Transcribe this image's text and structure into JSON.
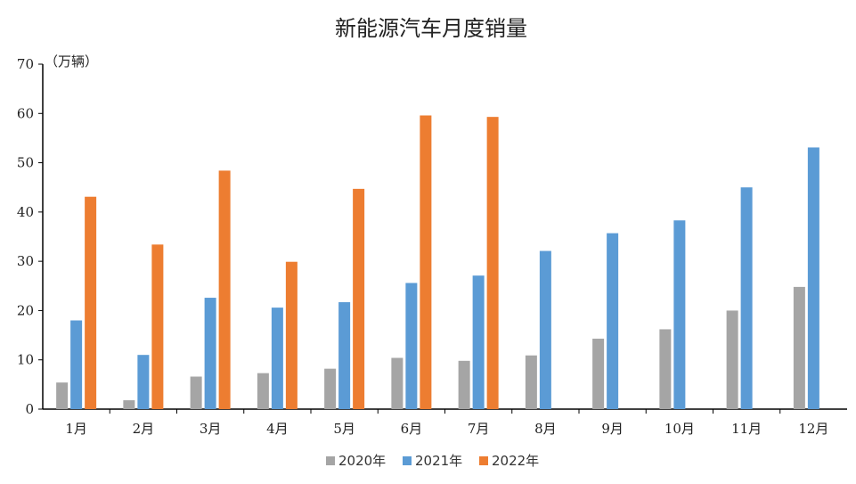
{
  "chart_data": {
    "type": "bar",
    "title": "新能源汽车月度销量",
    "ylabel": "（万辆）",
    "xlabel": "",
    "ylim": [
      0,
      70
    ],
    "yticks": [
      0,
      10,
      20,
      30,
      40,
      50,
      60,
      70
    ],
    "categories": [
      "1月",
      "2月",
      "3月",
      "4月",
      "5月",
      "6月",
      "7月",
      "8月",
      "9月",
      "10月",
      "11月",
      "12月"
    ],
    "series": [
      {
        "name": "2020年",
        "color": "#a5a5a5",
        "values": [
          5.4,
          1.8,
          6.6,
          7.3,
          8.2,
          10.4,
          9.8,
          10.9,
          14.3,
          16.2,
          20.0,
          24.8
        ]
      },
      {
        "name": "2021年",
        "color": "#5b9bd5",
        "values": [
          18.0,
          11.0,
          22.6,
          20.6,
          21.7,
          25.6,
          27.1,
          32.1,
          35.7,
          38.3,
          45.0,
          53.1
        ]
      },
      {
        "name": "2022年",
        "color": "#ed7d31",
        "values": [
          43.1,
          33.4,
          48.4,
          29.9,
          44.7,
          59.6,
          59.3,
          null,
          null,
          null,
          null,
          null
        ]
      }
    ],
    "grid": false,
    "legend_position": "bottom"
  }
}
